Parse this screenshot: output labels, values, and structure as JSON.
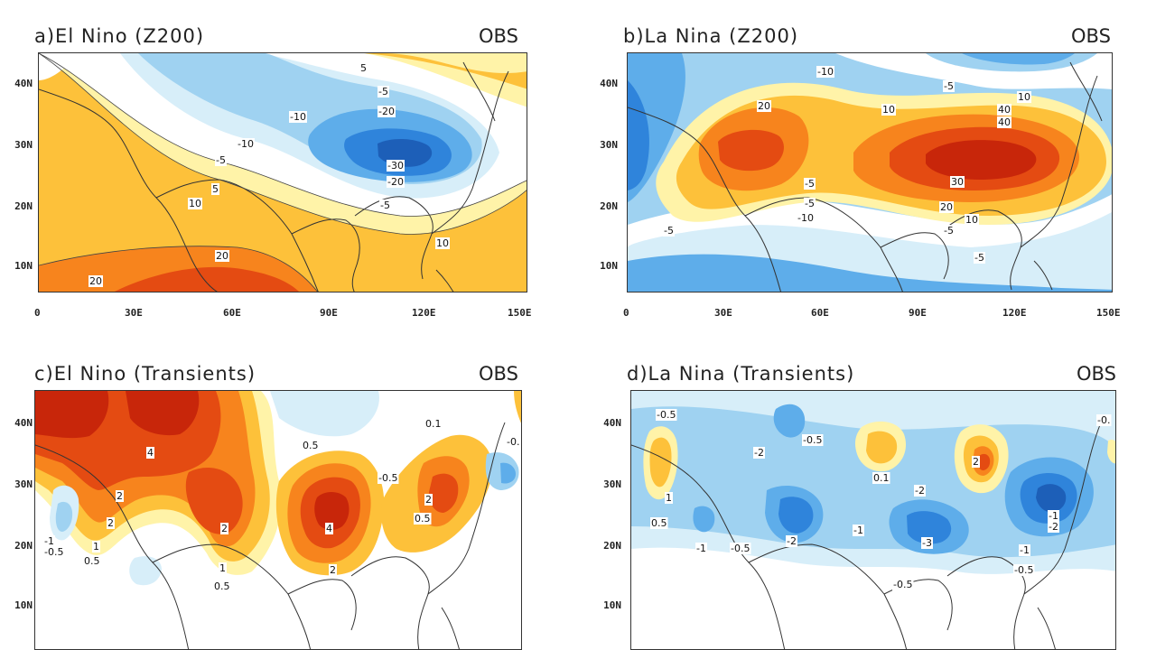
{
  "panels": [
    {
      "title": "a)El Nino (Z200)",
      "source": "OBS",
      "xticks": [
        "0",
        "30E",
        "60E",
        "90E",
        "120E",
        "150E"
      ],
      "yticks": [
        "40N",
        "30N",
        "20N",
        "10N"
      ],
      "contour_labels": [
        "5",
        "-5",
        "-10",
        "-20",
        "-10",
        "-5",
        "-30",
        "-20",
        "-5",
        "10",
        "5",
        "10",
        "20",
        "20"
      ]
    },
    {
      "title": "b)La Nina (Z200)",
      "source": "OBS",
      "xticks": [
        "0",
        "30E",
        "60E",
        "90E",
        "120E",
        "150E"
      ],
      "yticks": [
        "40N",
        "30N",
        "20N",
        "10N"
      ],
      "contour_labels": [
        "-5",
        "-10",
        "20",
        "10",
        "40",
        "40",
        "10",
        "-5",
        "-10",
        "-5",
        "30",
        "20",
        "10",
        "-5",
        "-5",
        "-5"
      ]
    },
    {
      "title": "c)El Nino (Transients)",
      "source": "OBS",
      "xticks": [
        "0",
        "30E",
        "60E",
        "90E",
        "120E",
        "150E"
      ],
      "yticks": [
        "40N",
        "30N",
        "20N",
        "10N"
      ],
      "contour_labels": [
        "4",
        "2",
        "2",
        "-1",
        "-0.5",
        "0.5",
        "1",
        "2",
        "1",
        "0.5",
        "0.5",
        "4",
        "2",
        "0.5",
        "-0.5",
        "2",
        "0.1",
        "-0."
      ]
    },
    {
      "title": "d)La Nina (Transients)",
      "source": "OBS",
      "xticks": [
        "0",
        "30E",
        "60E",
        "90E",
        "120E",
        "150E"
      ],
      "yticks": [
        "40N",
        "30N",
        "20N",
        "10N"
      ],
      "contour_labels": [
        "-0.5",
        "1",
        "0.5",
        "-2",
        "-0.5",
        "-1",
        "-0.5",
        "-2",
        "-1",
        "0.1",
        "-2",
        "-3",
        "-0.5",
        "2",
        "-1",
        "-0.5",
        "-2",
        "-1",
        "-0."
      ]
    }
  ],
  "colors": {
    "pos1": "#fff3a8",
    "pos2": "#fdc13a",
    "pos3": "#f7841d",
    "pos4": "#e44b12",
    "pos5": "#c8260a",
    "neg1": "#d7eef9",
    "neg2": "#9fd2f1",
    "neg3": "#5eadea",
    "neg4": "#2f84db",
    "neg5": "#1d5fb8",
    "coast": "#333333",
    "frame": "#333333"
  }
}
